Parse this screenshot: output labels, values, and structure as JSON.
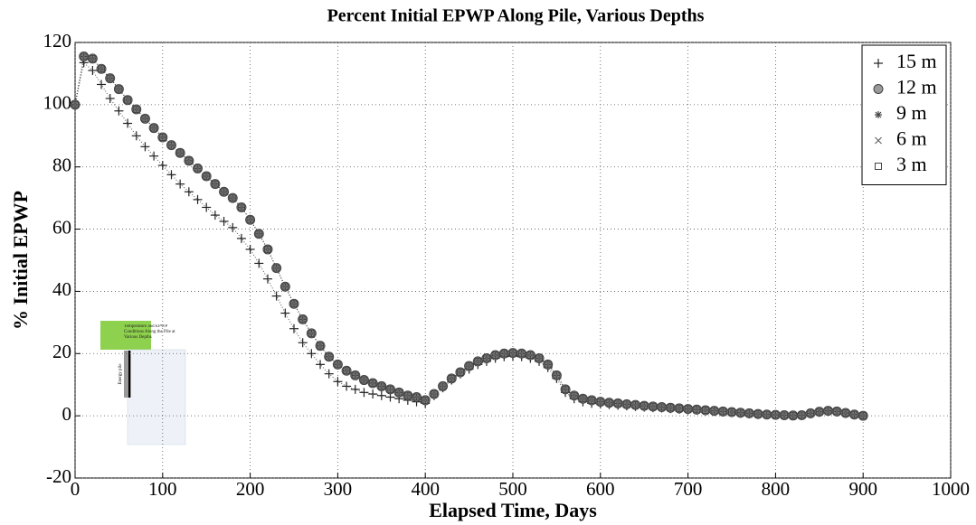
{
  "chart_data": {
    "type": "line",
    "title": "Percent Initial EPWP Along Pile, Various Depths",
    "x_label": "Elapsed Time, Days",
    "y_label": "% Initial EPWP",
    "xlim": [
      0,
      1000
    ],
    "xticks": [
      0,
      100,
      200,
      300,
      400,
      500,
      600,
      700,
      800,
      900,
      1000
    ],
    "ylim": [
      -20,
      120
    ],
    "yticks": [
      -20,
      0,
      20,
      40,
      60,
      80,
      100,
      120
    ],
    "grid": true,
    "legend": "upper right",
    "x": [
      0,
      10,
      20,
      30,
      40,
      50,
      60,
      70,
      80,
      90,
      100,
      110,
      120,
      130,
      140,
      150,
      160,
      170,
      180,
      190,
      200,
      210,
      220,
      230,
      240,
      250,
      260,
      270,
      280,
      290,
      300,
      310,
      320,
      330,
      340,
      350,
      360,
      370,
      380,
      390,
      400,
      410,
      420,
      430,
      440,
      450,
      460,
      470,
      480,
      490,
      500,
      510,
      520,
      530,
      540,
      550,
      560,
      570,
      580,
      590,
      600,
      610,
      620,
      630,
      640,
      650,
      660,
      670,
      680,
      690,
      700,
      710,
      720,
      730,
      740,
      750,
      760,
      770,
      780,
      790,
      800,
      810,
      820,
      830,
      840,
      850,
      860,
      870,
      880,
      890,
      900
    ],
    "series": [
      {
        "name": "15 m",
        "color": "#222222",
        "marker": "plus",
        "values": [
          100,
          113.5,
          111,
          106.5,
          102,
          98,
          94,
          90,
          86.5,
          83.5,
          80.5,
          77.5,
          74.5,
          72,
          69.5,
          67,
          64.5,
          62.5,
          60.5,
          57,
          53.5,
          49,
          44,
          38.5,
          33,
          28,
          23.5,
          20,
          16.5,
          13.5,
          11,
          9.5,
          8.5,
          7.5,
          7,
          6.5,
          6,
          5.5,
          5,
          4.5,
          4,
          6.5,
          9,
          11.5,
          13.5,
          15,
          16.5,
          17.5,
          18.5,
          19,
          19.2,
          19,
          18.5,
          17.5,
          15.5,
          12,
          7.5,
          5.5,
          4.5,
          4,
          3.8,
          3.6,
          3.4,
          3.2,
          3,
          2.8,
          2.6,
          2.5,
          2.3,
          2.1,
          1.9,
          1.8,
          1.6,
          1.4,
          1.2,
          1,
          0.8,
          0.6,
          0.4,
          0.3,
          0.2,
          0.1,
          0,
          0.1,
          0.6,
          1.1,
          1.4,
          1.2,
          0.7,
          0.3,
          0
        ]
      },
      {
        "name": "12 m",
        "color": "#444444",
        "marker": "circle",
        "values": [
          100,
          115.5,
          114.8,
          111.5,
          108.5,
          105,
          101.5,
          98.5,
          95.5,
          92.5,
          89.5,
          87,
          84.5,
          82,
          79.5,
          77,
          74.5,
          72,
          70,
          67,
          63,
          58.5,
          53.5,
          47.5,
          41.5,
          36,
          31,
          26.5,
          22.5,
          19,
          16.5,
          14.5,
          13,
          11.5,
          10.5,
          9.5,
          8.5,
          7.5,
          6.5,
          6,
          5,
          7,
          9.5,
          12,
          14,
          16,
          17.5,
          18.5,
          19.5,
          20,
          20.2,
          20,
          19.5,
          18.5,
          16.5,
          13,
          8.5,
          6.5,
          5.5,
          5,
          4.5,
          4.2,
          4,
          3.7,
          3.5,
          3.2,
          3,
          2.8,
          2.6,
          2.4,
          2.2,
          2,
          1.8,
          1.6,
          1.4,
          1.2,
          1,
          0.8,
          0.6,
          0.4,
          0.3,
          0.2,
          0.1,
          0.2,
          0.8,
          1.3,
          1.6,
          1.4,
          0.9,
          0.4,
          0
        ]
      },
      {
        "name": "9 m",
        "color": "#444444",
        "marker": "star",
        "values": [
          100,
          115.5,
          114.8,
          111.5,
          108.5,
          105,
          101.5,
          98.5,
          95.5,
          92.5,
          89.5,
          87,
          84.5,
          82,
          79.5,
          77,
          74.5,
          72,
          70,
          67,
          63,
          58.5,
          53.5,
          47.5,
          41.5,
          36,
          31,
          26.5,
          22.5,
          19,
          16.5,
          14.5,
          13,
          11.5,
          10.5,
          9.5,
          8.5,
          7.5,
          6.5,
          6,
          5,
          7,
          9.5,
          12,
          14,
          16,
          17.5,
          18.5,
          19.5,
          20,
          20.2,
          20,
          19.5,
          18.5,
          16.5,
          13,
          8.5,
          6.5,
          5.5,
          5,
          4.5,
          4.2,
          4,
          3.7,
          3.5,
          3.2,
          3,
          2.8,
          2.6,
          2.4,
          2.2,
          2,
          1.8,
          1.6,
          1.4,
          1.2,
          1,
          0.8,
          0.6,
          0.4,
          0.3,
          0.2,
          0.1,
          0.2,
          0.8,
          1.3,
          1.6,
          1.4,
          0.9,
          0.4,
          0
        ]
      },
      {
        "name": "6 m",
        "color": "#666666",
        "marker": "cross",
        "values": [
          100,
          115.5,
          114.8,
          111.5,
          108.5,
          105,
          101.5,
          98.5,
          95.5,
          92.5,
          89.5,
          87,
          84.5,
          82,
          79.5,
          77,
          74.5,
          72,
          70,
          67,
          63,
          58.5,
          53.5,
          47.5,
          41.5,
          36,
          31,
          26.5,
          22.5,
          19,
          16.5,
          14.5,
          13,
          11.5,
          10.5,
          9.5,
          8.5,
          7.5,
          6.5,
          6,
          5,
          7,
          9.5,
          12,
          14,
          16,
          17.5,
          18.5,
          19.5,
          20,
          20.2,
          20,
          19.5,
          18.5,
          16.5,
          13,
          8.5,
          6.5,
          5.5,
          5,
          4.5,
          4.2,
          4,
          3.7,
          3.5,
          3.2,
          3,
          2.8,
          2.6,
          2.4,
          2.2,
          2,
          1.8,
          1.6,
          1.4,
          1.2,
          1,
          0.8,
          0.6,
          0.4,
          0.3,
          0.2,
          0.1,
          0.2,
          0.8,
          1.3,
          1.6,
          1.4,
          0.9,
          0.4,
          0
        ]
      },
      {
        "name": "3 m",
        "color": "#444444",
        "marker": "square",
        "values": [
          100,
          115.5,
          114.8,
          111.5,
          108.5,
          105,
          101.5,
          98.5,
          95.5,
          92.5,
          89.5,
          87,
          84.5,
          82,
          79.5,
          77,
          74.5,
          72,
          70,
          67,
          63,
          58.5,
          53.5,
          47.5,
          41.5,
          36,
          31,
          26.5,
          22.5,
          19,
          16.5,
          14.5,
          13,
          11.5,
          10.5,
          9.5,
          8.5,
          7.5,
          6.5,
          6,
          5,
          7,
          9.5,
          12,
          14,
          16,
          17.5,
          18.5,
          19.5,
          20,
          20.2,
          20,
          19.5,
          18.5,
          16.5,
          13,
          8.5,
          6.5,
          5.5,
          5,
          4.5,
          4.2,
          4,
          3.7,
          3.5,
          3.2,
          3,
          2.8,
          2.6,
          2.4,
          2.2,
          2,
          1.8,
          1.6,
          1.4,
          1.2,
          1,
          0.8,
          0.6,
          0.4,
          0.3,
          0.2,
          0.1,
          0.2,
          0.8,
          1.3,
          1.6,
          1.4,
          0.9,
          0.4,
          0
        ]
      }
    ]
  },
  "inset": {
    "title": "Temperature and EPWP Conditions Along the Pile at Various Depths",
    "label": "Energy pile"
  }
}
